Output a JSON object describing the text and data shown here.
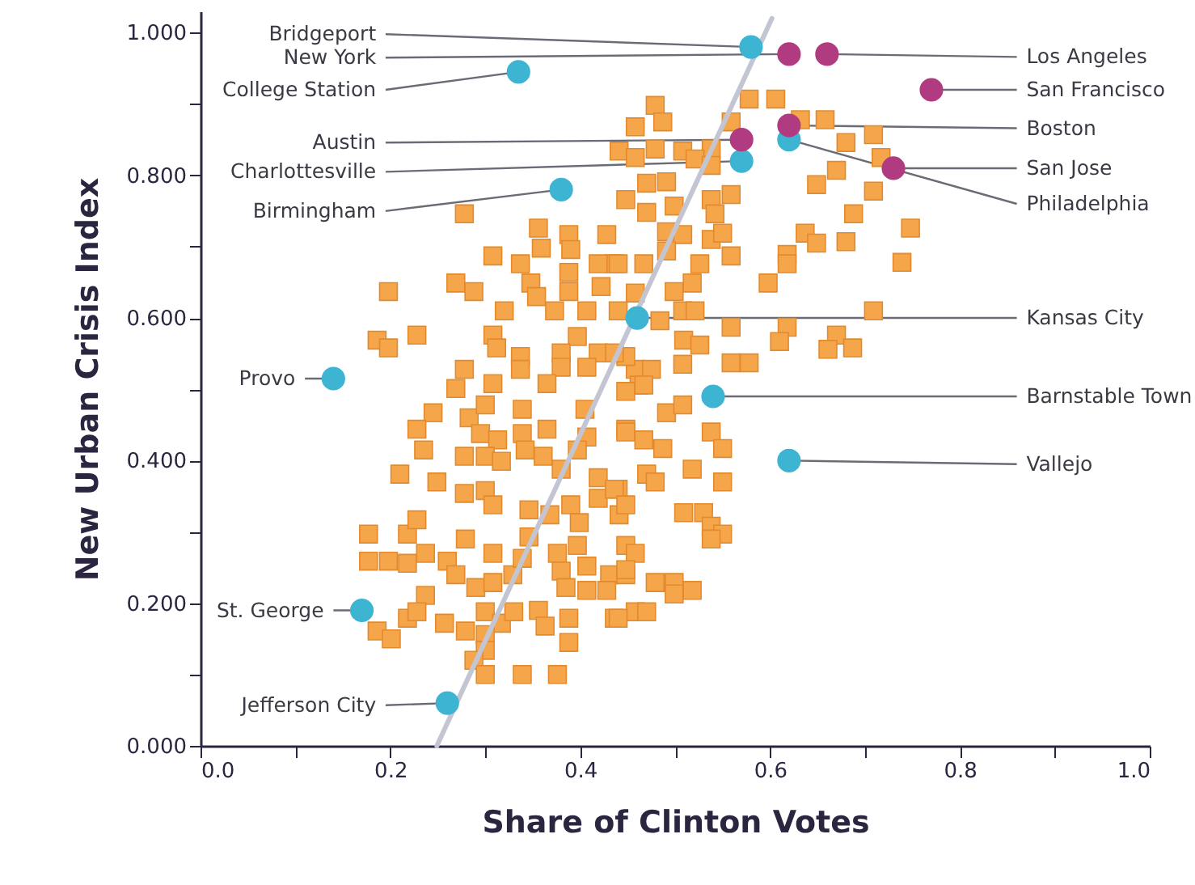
{
  "chart_data": {
    "type": "scatter",
    "xlabel": "Share of Clinton Votes",
    "ylabel": "New Urban Crisis Index",
    "xlim": [
      0,
      1
    ],
    "ylim": [
      0,
      1.03
    ],
    "xticks": [
      {
        "value": 0,
        "label": "0.0"
      },
      {
        "value": 0.1,
        "label": null
      },
      {
        "value": 0.2,
        "label": "0.2"
      },
      {
        "value": 0.3,
        "label": null
      },
      {
        "value": 0.4,
        "label": "0.4"
      },
      {
        "value": 0.5,
        "label": null
      },
      {
        "value": 0.6,
        "label": "0.6"
      },
      {
        "value": 0.7,
        "label": null
      },
      {
        "value": 0.8,
        "label": "0.8"
      },
      {
        "value": 0.9,
        "label": null
      },
      {
        "value": 1,
        "label": "1.0"
      }
    ],
    "yticks": [
      {
        "value": 0,
        "label": "0.000"
      },
      {
        "value": 0.1,
        "label": null
      },
      {
        "value": 0.2,
        "label": "0.200"
      },
      {
        "value": 0.3,
        "label": null
      },
      {
        "value": 0.4,
        "label": "0.400"
      },
      {
        "value": 0.5,
        "label": null
      },
      {
        "value": 0.6,
        "label": "0.600"
      },
      {
        "value": 0.7,
        "label": null
      },
      {
        "value": 0.8,
        "label": "0.800"
      },
      {
        "value": 0.9,
        "label": null
      },
      {
        "value": 1,
        "label": "1.000"
      }
    ],
    "series": [
      {
        "type": "scatter",
        "marker": "square",
        "color": "#f5a54a",
        "x": [
          0.479,
          0.487,
          0.458,
          0.441,
          0.458,
          0.479,
          0.508,
          0.538,
          0.521,
          0.538,
          0.559,
          0.578,
          0.606,
          0.632,
          0.658,
          0.68,
          0.709,
          0.717,
          0.67,
          0.649,
          0.709,
          0.688,
          0.748,
          0.637,
          0.649,
          0.68,
          0.739,
          0.618,
          0.618,
          0.598,
          0.709,
          0.47,
          0.491,
          0.448,
          0.47,
          0.499,
          0.538,
          0.559,
          0.542,
          0.491,
          0.508,
          0.538,
          0.55,
          0.559,
          0.526,
          0.491,
          0.467,
          0.436,
          0.518,
          0.499,
          0.458,
          0.508,
          0.521,
          0.484,
          0.559,
          0.618,
          0.61,
          0.67,
          0.687,
          0.661,
          0.509,
          0.526,
          0.559,
          0.578,
          0.508,
          0.458,
          0.448,
          0.475,
          0.462,
          0.278,
          0.356,
          0.388,
          0.428,
          0.359,
          0.39,
          0.308,
          0.337,
          0.419,
          0.44,
          0.388,
          0.269,
          0.288,
          0.348,
          0.388,
          0.422,
          0.198,
          0.354,
          0.373,
          0.32,
          0.407,
          0.44,
          0.308,
          0.228,
          0.186,
          0.198,
          0.312,
          0.337,
          0.397,
          0.38,
          0.419,
          0.436,
          0.278,
          0.337,
          0.38,
          0.407,
          0.269,
          0.308,
          0.365,
          0.245,
          0.228,
          0.283,
          0.3,
          0.295,
          0.313,
          0.339,
          0.339,
          0.365,
          0.405,
          0.407,
          0.448,
          0.235,
          0.278,
          0.3,
          0.317,
          0.342,
          0.361,
          0.38,
          0.397,
          0.21,
          0.249,
          0.278,
          0.3,
          0.308,
          0.346,
          0.368,
          0.39,
          0.419,
          0.44,
          0.419,
          0.399,
          0.441,
          0.177,
          0.218,
          0.228,
          0.279,
          0.346,
          0.177,
          0.198,
          0.218,
          0.237,
          0.26,
          0.269,
          0.308,
          0.29,
          0.308,
          0.329,
          0.339,
          0.376,
          0.397,
          0.38,
          0.407,
          0.431,
          0.385,
          0.407,
          0.428,
          0.448,
          0.237,
          0.218,
          0.228,
          0.257,
          0.279,
          0.186,
          0.201,
          0.3,
          0.317,
          0.3,
          0.33,
          0.356,
          0.363,
          0.388,
          0.388,
          0.436,
          0.3,
          0.288,
          0.3,
          0.339,
          0.376,
          0.448,
          0.467,
          0.491,
          0.508,
          0.448,
          0.467,
          0.487,
          0.538,
          0.55,
          0.518,
          0.55,
          0.47,
          0.479,
          0.436,
          0.448,
          0.509,
          0.53,
          0.538,
          0.55,
          0.538,
          0.448,
          0.458,
          0.448,
          0.479,
          0.499,
          0.518,
          0.499,
          0.458,
          0.47,
          0.44
        ],
        "values": [
          0.898,
          0.875,
          0.868,
          0.834,
          0.825,
          0.837,
          0.834,
          0.837,
          0.823,
          0.814,
          0.875,
          0.907,
          0.907,
          0.878,
          0.878,
          0.846,
          0.857,
          0.825,
          0.807,
          0.787,
          0.778,
          0.746,
          0.726,
          0.719,
          0.705,
          0.707,
          0.678,
          0.689,
          0.676,
          0.649,
          0.61,
          0.789,
          0.791,
          0.766,
          0.748,
          0.757,
          0.766,
          0.773,
          0.746,
          0.721,
          0.717,
          0.71,
          0.719,
          0.687,
          0.676,
          0.694,
          0.676,
          0.676,
          0.649,
          0.637,
          0.635,
          0.61,
          0.61,
          0.596,
          0.587,
          0.587,
          0.567,
          0.576,
          0.558,
          0.556,
          0.569,
          0.562,
          0.537,
          0.537,
          0.535,
          0.528,
          0.546,
          0.528,
          0.506,
          0.746,
          0.726,
          0.717,
          0.717,
          0.698,
          0.696,
          0.687,
          0.676,
          0.676,
          0.676,
          0.664,
          0.649,
          0.637,
          0.649,
          0.637,
          0.644,
          0.637,
          0.63,
          0.61,
          0.61,
          0.61,
          0.61,
          0.576,
          0.576,
          0.569,
          0.558,
          0.558,
          0.546,
          0.574,
          0.551,
          0.551,
          0.551,
          0.528,
          0.528,
          0.531,
          0.531,
          0.501,
          0.508,
          0.508,
          0.467,
          0.444,
          0.46,
          0.478,
          0.438,
          0.429,
          0.472,
          0.438,
          0.444,
          0.472,
          0.433,
          0.444,
          0.415,
          0.406,
          0.406,
          0.399,
          0.415,
          0.406,
          0.388,
          0.415,
          0.381,
          0.37,
          0.354,
          0.358,
          0.338,
          0.331,
          0.324,
          0.338,
          0.347,
          0.36,
          0.376,
          0.313,
          0.324,
          0.297,
          0.297,
          0.317,
          0.29,
          0.293,
          0.259,
          0.259,
          0.256,
          0.27,
          0.259,
          0.24,
          0.27,
          0.222,
          0.229,
          0.24,
          0.263,
          0.27,
          0.281,
          0.245,
          0.252,
          0.24,
          0.222,
          0.218,
          0.218,
          0.24,
          0.211,
          0.179,
          0.188,
          0.172,
          0.161,
          0.161,
          0.15,
          0.188,
          0.172,
          0.156,
          0.188,
          0.19,
          0.168,
          0.179,
          0.145,
          0.179,
          0.134,
          0.12,
          0.1,
          0.1,
          0.1,
          0.497,
          0.506,
          0.467,
          0.478,
          0.44,
          0.429,
          0.417,
          0.44,
          0.417,
          0.388,
          0.37,
          0.381,
          0.37,
          0.36,
          0.338,
          0.327,
          0.327,
          0.308,
          0.297,
          0.29,
          0.281,
          0.27,
          0.247,
          0.229,
          0.229,
          0.218,
          0.213,
          0.188,
          0.188,
          0.179
        ]
      },
      {
        "type": "line",
        "color": "#c3c6d2",
        "x": [
          0.249,
          0.602
        ],
        "values": [
          0,
          1.02
        ]
      },
      {
        "type": "scatter",
        "marker": "circle",
        "color": "#3db4d2",
        "x": [
          0.58,
          0.335,
          0.57,
          0.38,
          0.62,
          0.46,
          0.14,
          0.54,
          0.62,
          0.17,
          0.26
        ],
        "values": [
          0.98,
          0.945,
          0.82,
          0.78,
          0.85,
          0.6,
          0.515,
          0.49,
          0.4,
          0.19,
          0.06
        ]
      },
      {
        "type": "scatter",
        "marker": "circle",
        "color": "#b13b80",
        "x": [
          0.62,
          0.66,
          0.77,
          0.62,
          0.57,
          0.73
        ],
        "values": [
          0.97,
          0.97,
          0.92,
          0.87,
          0.85,
          0.81
        ]
      }
    ],
    "annotations": [
      {
        "text": "Bridgeport",
        "x": 0.58,
        "y": 0.98
      },
      {
        "text": "New York",
        "x": 0.62,
        "y": 0.97
      },
      {
        "text": "College Station",
        "x": 0.335,
        "y": 0.945
      },
      {
        "text": "Austin",
        "x": 0.57,
        "y": 0.85
      },
      {
        "text": "Charlottesville",
        "x": 0.57,
        "y": 0.82
      },
      {
        "text": "Birmingham",
        "x": 0.38,
        "y": 0.78
      },
      {
        "text": "Provo",
        "x": 0.14,
        "y": 0.515
      },
      {
        "text": "St. George",
        "x": 0.17,
        "y": 0.19
      },
      {
        "text": "Jefferson City",
        "x": 0.26,
        "y": 0.06
      },
      {
        "text": "Los Angeles",
        "x": 0.66,
        "y": 0.97
      },
      {
        "text": "San Francisco",
        "x": 0.77,
        "y": 0.92
      },
      {
        "text": "Boston",
        "x": 0.62,
        "y": 0.87
      },
      {
        "text": "San Jose",
        "x": 0.73,
        "y": 0.81
      },
      {
        "text": "Philadelphia",
        "x": 0.62,
        "y": 0.85
      },
      {
        "text": "Kansas City",
        "x": 0.46,
        "y": 0.6
      },
      {
        "text": "Barnstable Town",
        "x": 0.54,
        "y": 0.49
      },
      {
        "text": "Vallejo",
        "x": 0.62,
        "y": 0.4
      }
    ]
  }
}
